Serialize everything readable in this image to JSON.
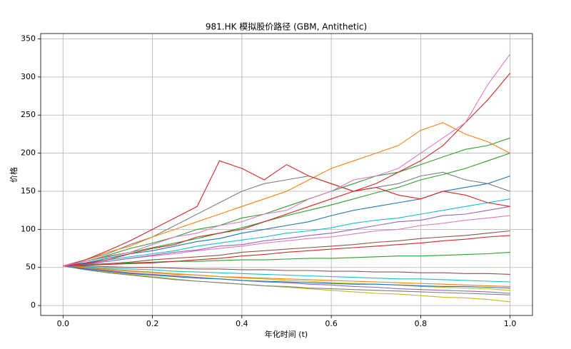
{
  "chart_data": {
    "type": "line",
    "title": "981.HK 模拟股价路径 (GBM, Antithetic)",
    "x_label": "年化时间 (t)",
    "y_label": "价格",
    "x": [
      0,
      0.05,
      0.1,
      0.15,
      0.2,
      0.25,
      0.3,
      0.35,
      0.4,
      0.45,
      0.5,
      0.55,
      0.6,
      0.65,
      0.7,
      0.75,
      0.8,
      0.85,
      0.9,
      0.95,
      1
    ],
    "xlim": [
      -0.05,
      1.05
    ],
    "ylim": [
      -13,
      357
    ],
    "xticks": [
      {
        "value": 0,
        "label": "0.0"
      },
      0.2,
      0.4,
      0.6,
      0.8,
      {
        "value": 1,
        "label": "1.0"
      }
    ],
    "yticks": [
      0,
      50,
      100,
      150,
      200,
      250,
      300,
      350
    ],
    "grid": true,
    "series": [
      {
        "color": "#bcbd22",
        "values": [
          52,
          48,
          44,
          41,
          38,
          35,
          32,
          30,
          28,
          26,
          24,
          22,
          20,
          18,
          16,
          15,
          13,
          11,
          10,
          8,
          5
        ]
      },
      {
        "color": "#7f7f7f",
        "values": [
          52,
          47,
          43,
          40,
          37,
          34,
          32,
          30,
          28,
          26,
          25,
          23,
          22,
          21,
          20,
          19,
          18,
          17,
          16,
          15,
          14
        ]
      },
      {
        "color": "#9467bd",
        "values": [
          52,
          49,
          46,
          43,
          41,
          39,
          37,
          35,
          33,
          31,
          30,
          28,
          27,
          25,
          24,
          22,
          21,
          20,
          19,
          18,
          16
        ]
      },
      {
        "color": "#bcbd22",
        "values": [
          52,
          50,
          48,
          46,
          44,
          42,
          40,
          38,
          36,
          35,
          33,
          32,
          30,
          29,
          28,
          27,
          25,
          24,
          23,
          22,
          20
        ]
      },
      {
        "color": "#1f77b4",
        "values": [
          52,
          48,
          45,
          42,
          40,
          38,
          36,
          35,
          33,
          32,
          31,
          30,
          29,
          28,
          28,
          27,
          26,
          25,
          25,
          24,
          23
        ]
      },
      {
        "color": "#ff7f0e",
        "values": [
          52,
          50,
          47,
          45,
          43,
          41,
          40,
          38,
          37,
          36,
          35,
          34,
          33,
          32,
          31,
          30,
          29,
          28,
          27,
          26,
          25
        ]
      },
      {
        "color": "#17becf",
        "values": [
          52,
          51,
          49,
          48,
          47,
          45,
          44,
          43,
          42,
          41,
          40,
          39,
          38,
          37,
          36,
          35,
          35,
          34,
          33,
          32,
          31
        ]
      },
      {
        "color": "#8c564b",
        "values": [
          52,
          52,
          51,
          50,
          50,
          49,
          48,
          48,
          47,
          47,
          46,
          46,
          45,
          45,
          44,
          44,
          43,
          43,
          42,
          42,
          41
        ]
      },
      {
        "color": "#2ca02c",
        "values": [
          52,
          54,
          55,
          56,
          57,
          58,
          58,
          59,
          60,
          60,
          61,
          62,
          62,
          63,
          64,
          65,
          65,
          66,
          67,
          68,
          70
        ]
      },
      {
        "color": "#d62728",
        "values": [
          52,
          53,
          54,
          55,
          56,
          58,
          60,
          62,
          65,
          67,
          70,
          72,
          74,
          76,
          78,
          80,
          82,
          85,
          87,
          90,
          92
        ]
      },
      {
        "color": "#8c564b",
        "values": [
          52,
          53,
          55,
          57,
          60,
          62,
          64,
          66,
          70,
          72,
          74,
          76,
          78,
          80,
          83,
          85,
          88,
          90,
          92,
          95,
          98
        ]
      },
      {
        "color": "#e377c2",
        "values": [
          52,
          55,
          58,
          62,
          65,
          68,
          72,
          75,
          78,
          82,
          85,
          88,
          90,
          94,
          98,
          100,
          105,
          108,
          112,
          115,
          118
        ]
      },
      {
        "color": "#9467bd",
        "values": [
          52,
          54,
          58,
          62,
          66,
          70,
          73,
          78,
          80,
          85,
          88,
          92,
          95,
          100,
          105,
          110,
          112,
          118,
          120,
          125,
          130
        ]
      },
      {
        "color": "#17becf",
        "values": [
          52,
          56,
          60,
          64,
          68,
          72,
          78,
          82,
          86,
          90,
          95,
          98,
          102,
          108,
          112,
          115,
          120,
          125,
          130,
          135,
          140
        ]
      },
      {
        "color": "#1f77b4",
        "values": [
          52,
          56,
          62,
          68,
          72,
          78,
          84,
          88,
          95,
          100,
          105,
          110,
          118,
          125,
          130,
          135,
          140,
          150,
          155,
          160,
          170
        ]
      },
      {
        "color": "#7f7f7f",
        "values": [
          52,
          60,
          68,
          80,
          90,
          105,
          120,
          135,
          150,
          160,
          165,
          170,
          160,
          150,
          155,
          160,
          170,
          175,
          165,
          160,
          150
        ]
      },
      {
        "color": "#2ca02c",
        "values": [
          52,
          58,
          64,
          70,
          76,
          82,
          88,
          95,
          102,
          110,
          118,
          125,
          132,
          140,
          148,
          155,
          165,
          172,
          180,
          190,
          200
        ]
      },
      {
        "color": "#2ca02c",
        "values": [
          52,
          58,
          66,
          75,
          82,
          90,
          100,
          105,
          115,
          120,
          130,
          140,
          150,
          160,
          170,
          175,
          185,
          195,
          205,
          210,
          220
        ]
      },
      {
        "color": "#ff7f0e",
        "values": [
          52,
          60,
          70,
          78,
          90,
          100,
          110,
          120,
          130,
          140,
          150,
          165,
          180,
          190,
          200,
          210,
          230,
          240,
          225,
          215,
          200
        ]
      },
      {
        "color": "#d62728",
        "values": [
          52,
          60,
          72,
          85,
          100,
          115,
          130,
          190,
          180,
          165,
          185,
          170,
          160,
          150,
          155,
          145,
          140,
          150,
          145,
          135,
          130
        ]
      },
      {
        "color": "#d62728",
        "values": [
          52,
          55,
          60,
          68,
          75,
          80,
          90,
          95,
          100,
          110,
          120,
          130,
          140,
          150,
          160,
          175,
          190,
          210,
          240,
          270,
          305
        ]
      },
      {
        "color": "#e377c2",
        "values": [
          52,
          58,
          65,
          70,
          80,
          90,
          95,
          105,
          110,
          120,
          125,
          140,
          150,
          165,
          170,
          180,
          200,
          220,
          240,
          290,
          330
        ]
      }
    ]
  }
}
